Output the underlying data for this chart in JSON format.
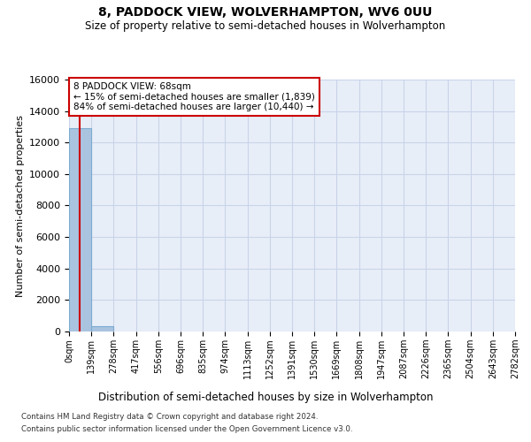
{
  "title": "8, PADDOCK VIEW, WOLVERHAMPTON, WV6 0UU",
  "subtitle": "Size of property relative to semi-detached houses in Wolverhampton",
  "xlabel": "Distribution of semi-detached houses by size in Wolverhampton",
  "ylabel": "Number of semi-detached properties",
  "property_size": 68,
  "annotation_line1": "8 PADDOCK VIEW: 68sqm",
  "annotation_line2": "← 15% of semi-detached houses are smaller (1,839)",
  "annotation_line3": "84% of semi-detached houses are larger (10,440) →",
  "bin_edges": [
    0,
    139,
    278,
    417,
    556,
    696,
    835,
    974,
    1113,
    1252,
    1391,
    1530,
    1669,
    1808,
    1947,
    2087,
    2226,
    2365,
    2504,
    2643,
    2782
  ],
  "bin_counts": [
    12900,
    350,
    0,
    0,
    0,
    0,
    0,
    0,
    0,
    0,
    0,
    0,
    0,
    0,
    0,
    0,
    0,
    0,
    0,
    0
  ],
  "bar_color": "#aac4e0",
  "bar_edge_color": "#7aabd0",
  "grid_color": "#c8d4e8",
  "vline_color": "#cc0000",
  "annotation_box_color": "#ffffff",
  "annotation_box_edge": "#cc0000",
  "footer_line1": "Contains HM Land Registry data © Crown copyright and database right 2024.",
  "footer_line2": "Contains public sector information licensed under the Open Government Licence v3.0.",
  "ylim": [
    0,
    16000
  ],
  "yticks": [
    0,
    2000,
    4000,
    6000,
    8000,
    10000,
    12000,
    14000,
    16000
  ],
  "background_color": "#e8eef8"
}
